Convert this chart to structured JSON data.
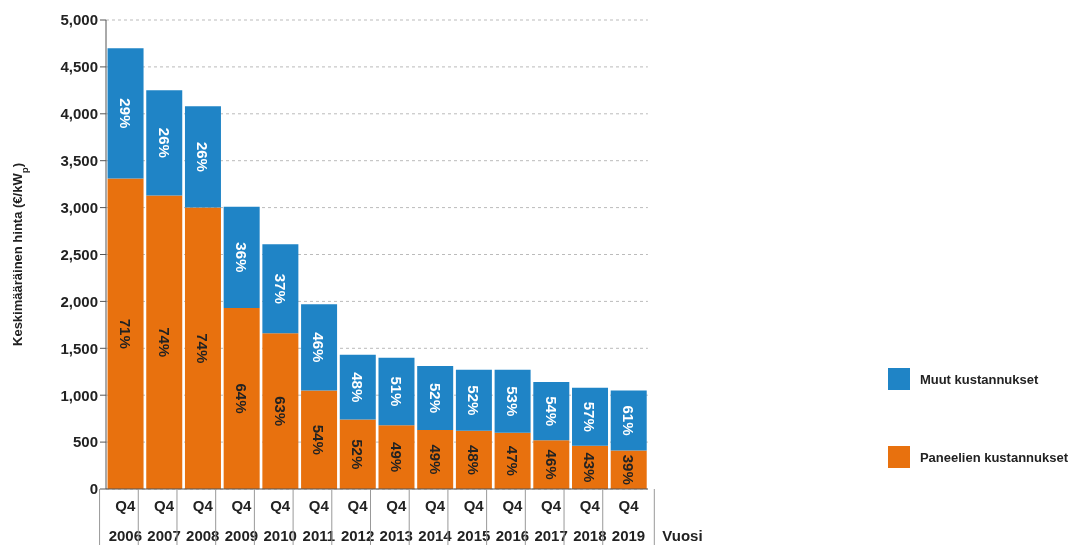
{
  "chart_data": {
    "type": "bar",
    "stacked": true,
    "ylabel": "Keskimääräinen hinta (€/kW$_{p}$)",
    "xlabel": "Vuosi",
    "categories": [
      "Q4 2006",
      "Q4 2007",
      "Q4 2008",
      "Q4 2009",
      "Q4 2010",
      "Q4 2011",
      "Q4 2012",
      "Q4 2013",
      "Q4 2014",
      "Q4 2015",
      "Q4 2016",
      "Q4 2017",
      "Q4 2018",
      "Q4 2019"
    ],
    "series": [
      {
        "name": "Paneelien kustannukset",
        "color": "#e8710e",
        "values": [
          3310,
          3130,
          3000,
          1930,
          1660,
          1050,
          740,
          680,
          630,
          620,
          600,
          520,
          460,
          410
        ]
      },
      {
        "name": "Muut kustannukset",
        "color": "#1f84c6",
        "values": [
          1390,
          1120,
          1080,
          1080,
          950,
          920,
          690,
          720,
          680,
          650,
          670,
          620,
          620,
          640
        ]
      }
    ],
    "annotations": [
      "71%",
      "29%",
      "74%",
      "26%",
      "74%",
      "26%",
      "64%",
      "36%",
      "63%",
      "37%",
      "54%",
      "46%",
      "52%",
      "48%",
      "49%",
      "51%",
      "49%",
      "52%",
      "48%",
      "52%",
      "47%",
      "53%",
      "46%",
      "54%",
      "43%",
      "57%",
      "39%",
      "61%"
    ],
    "ylim": [
      0,
      5000
    ],
    "yticks": [
      0,
      500,
      {
        "value": 1000,
        "label": "1,000"
      },
      {
        "value": 1500,
        "label": "1,500"
      },
      {
        "value": 2000,
        "label": "2,000"
      },
      {
        "value": 2500,
        "label": "2,500"
      },
      {
        "value": 3000,
        "label": "3,000"
      },
      {
        "value": 3500,
        "label": "3,500"
      },
      {
        "value": 4000,
        "label": "4,000"
      },
      {
        "value": 4500,
        "label": "4,500"
      },
      {
        "value": 5000,
        "label": "5,000"
      }
    ],
    "grid": "y",
    "legend": "right"
  }
}
